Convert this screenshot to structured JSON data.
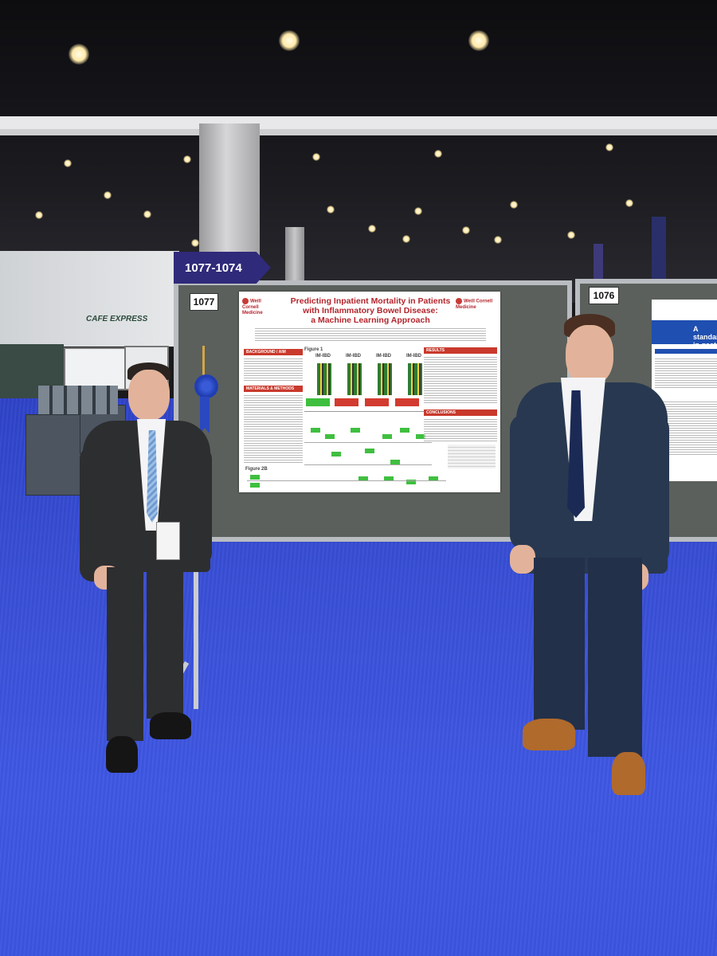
{
  "scene": {
    "aisle_sign": "1077-1074",
    "booth_left_number": "1077",
    "booth_right_number": "1076",
    "cafe_sign": "CAFE EXPRESS",
    "colors": {
      "carpet": "#3a50d8",
      "booth_panel": "#5b605c",
      "sign": "#2f2a7a",
      "poster_accent": "#b3262d"
    }
  },
  "poster": {
    "logo_left": "Weill Cornell Medicine",
    "logo_right": "Weill Cornell Medicine",
    "title_line1": "Predicting Inpatient Mortality in Patients",
    "title_line2": "with Inflammatory Bowel Disease:",
    "title_line3": "a Machine Learning Approach",
    "sections": {
      "background": "BACKGROUND / AIM",
      "methods": "MATERIALS & METHODS",
      "results": "RESULTS",
      "conclusions": "CONCLUSIONS"
    },
    "figure_label_1": "Figure 1",
    "figure_label_2": "Figure 2B",
    "panel_labels": [
      "IM-IBD",
      "IM-IBD",
      "IM-IBD",
      "IM-IBD"
    ]
  },
  "poster_right": {
    "title_fragment": "A standar in gastro"
  },
  "people": [
    {
      "name": "person-left",
      "attire": "dark suit, light blue tie, badge lanyard"
    },
    {
      "name": "person-right",
      "attire": "navy suit, navy tie, brown shoes"
    }
  ]
}
